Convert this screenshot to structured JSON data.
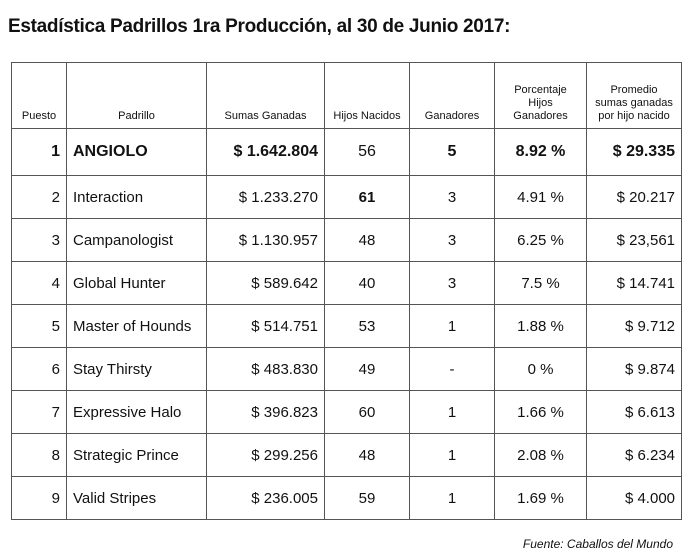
{
  "title": "Estadística Padrillos 1ra Producción,  al 30 de Junio 2017:",
  "table": {
    "headers": {
      "puesto": "Puesto",
      "padrillo": "Padrillo",
      "sumas": "Sumas Ganadas",
      "hijos": "Hijos Nacidos",
      "ganadores": "Ganadores",
      "porcentaje": "Porcentaje Hijos Ganadores",
      "promedio": "Promedio sumas ganadas por hijo nacido"
    },
    "rows": [
      {
        "puesto": "1",
        "padrillo": "ANGIOLO",
        "sumas": "$ 1.642.804",
        "hijos": "56",
        "ganadores": "5",
        "porcentaje": "8.92 %",
        "promedio": "$ 29.335"
      },
      {
        "puesto": "2",
        "padrillo": "Interaction",
        "sumas": "$ 1.233.270",
        "hijos": "61",
        "ganadores": "3",
        "porcentaje": "4.91 %",
        "promedio": "$ 20.217"
      },
      {
        "puesto": "3",
        "padrillo": "Campanologist",
        "sumas": "$ 1.130.957",
        "hijos": "48",
        "ganadores": "3",
        "porcentaje": "6.25 %",
        "promedio": "$ 23,561"
      },
      {
        "puesto": "4",
        "padrillo": "Global Hunter",
        "sumas": "$ 589.642",
        "hijos": "40",
        "ganadores": "3",
        "porcentaje": "7.5 %",
        "promedio": "$ 14.741"
      },
      {
        "puesto": "5",
        "padrillo": "Master of Hounds",
        "sumas": "$ 514.751",
        "hijos": "53",
        "ganadores": "1",
        "porcentaje": "1.88 %",
        "promedio": "$ 9.712"
      },
      {
        "puesto": "6",
        "padrillo": "Stay Thirsty",
        "sumas": "$ 483.830",
        "hijos": "49",
        "ganadores": "-",
        "porcentaje": "0 %",
        "promedio": "$ 9.874"
      },
      {
        "puesto": "7",
        "padrillo": "Expressive Halo",
        "sumas": "$ 396.823",
        "hijos": "60",
        "ganadores": "1",
        "porcentaje": "1.66 %",
        "promedio": "$ 6.613"
      },
      {
        "puesto": "8",
        "padrillo": "Strategic Prince",
        "sumas": "$ 299.256",
        "hijos": "48",
        "ganadores": "1",
        "porcentaje": "2.08 %",
        "promedio": "$ 6.234"
      },
      {
        "puesto": "9",
        "padrillo": "Valid Stripes",
        "sumas": "$ 236.005",
        "hijos": "59",
        "ganadores": "1",
        "porcentaje": "1.69 %",
        "promedio": "$ 4.000"
      }
    ]
  },
  "source": "Fuente: Caballos del Mundo"
}
